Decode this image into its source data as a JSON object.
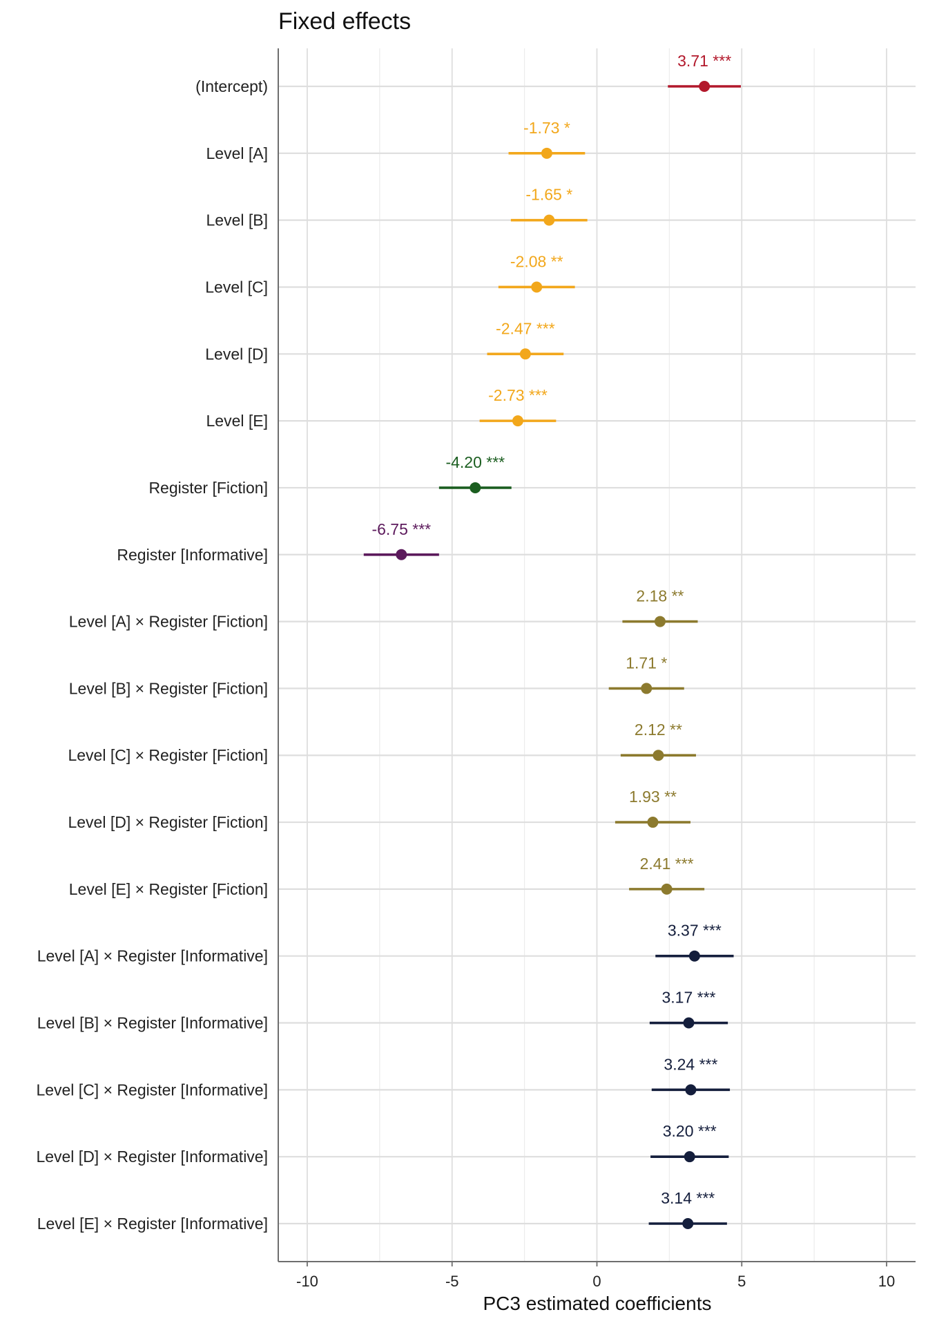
{
  "chart_data": {
    "type": "scatter",
    "title": "Fixed effects",
    "xlabel": "PC3 estimated coefficients",
    "ylabel": "",
    "xlim": [
      -11,
      11
    ],
    "xticks": [
      -10,
      -5,
      0,
      5,
      10
    ],
    "grid": true,
    "legend": "none",
    "terms": [
      {
        "label": "(Intercept)",
        "estimate": 3.71,
        "ci_low": 2.45,
        "ci_high": 4.97,
        "value_label": "3.71 ***",
        "color": "#B2182B"
      },
      {
        "label": "Level [A]",
        "estimate": -1.73,
        "ci_low": -3.05,
        "ci_high": -0.41,
        "value_label": "-1.73 *",
        "color": "#F2A71B"
      },
      {
        "label": "Level [B]",
        "estimate": -1.65,
        "ci_low": -2.97,
        "ci_high": -0.33,
        "value_label": "-1.65 *",
        "color": "#F2A71B"
      },
      {
        "label": "Level [C]",
        "estimate": -2.08,
        "ci_low": -3.4,
        "ci_high": -0.76,
        "value_label": "-2.08 **",
        "color": "#F2A71B"
      },
      {
        "label": "Level [D]",
        "estimate": -2.47,
        "ci_low": -3.79,
        "ci_high": -1.15,
        "value_label": "-2.47 ***",
        "color": "#F2A71B"
      },
      {
        "label": "Level [E]",
        "estimate": -2.73,
        "ci_low": -4.05,
        "ci_high": -1.41,
        "value_label": "-2.73 ***",
        "color": "#F2A71B"
      },
      {
        "label": "Register [Fiction]",
        "estimate": -4.2,
        "ci_low": -5.45,
        "ci_high": -2.95,
        "value_label": "-4.20 ***",
        "color": "#1B5E20"
      },
      {
        "label": "Register [Informative]",
        "estimate": -6.75,
        "ci_low": -8.05,
        "ci_high": -5.45,
        "value_label": "-6.75 ***",
        "color": "#5C1A5C"
      },
      {
        "label": "Level [A] × Register [Fiction]",
        "estimate": 2.18,
        "ci_low": 0.88,
        "ci_high": 3.48,
        "value_label": "2.18 **",
        "color": "#8C7A2E"
      },
      {
        "label": "Level [B] × Register [Fiction]",
        "estimate": 1.71,
        "ci_low": 0.41,
        "ci_high": 3.01,
        "value_label": "1.71 *",
        "color": "#8C7A2E"
      },
      {
        "label": "Level [C] × Register [Fiction]",
        "estimate": 2.12,
        "ci_low": 0.82,
        "ci_high": 3.42,
        "value_label": "2.12 **",
        "color": "#8C7A2E"
      },
      {
        "label": "Level [D] × Register [Fiction]",
        "estimate": 1.93,
        "ci_low": 0.63,
        "ci_high": 3.23,
        "value_label": "1.93 **",
        "color": "#8C7A2E"
      },
      {
        "label": "Level [E] × Register [Fiction]",
        "estimate": 2.41,
        "ci_low": 1.11,
        "ci_high": 3.71,
        "value_label": "2.41 ***",
        "color": "#8C7A2E"
      },
      {
        "label": "Level [A] × Register [Informative]",
        "estimate": 3.37,
        "ci_low": 2.02,
        "ci_high": 4.72,
        "value_label": "3.37 ***",
        "color": "#141E3C"
      },
      {
        "label": "Level [B] × Register [Informative]",
        "estimate": 3.17,
        "ci_low": 1.82,
        "ci_high": 4.52,
        "value_label": "3.17 ***",
        "color": "#141E3C"
      },
      {
        "label": "Level [C] × Register [Informative]",
        "estimate": 3.24,
        "ci_low": 1.89,
        "ci_high": 4.59,
        "value_label": "3.24 ***",
        "color": "#141E3C"
      },
      {
        "label": "Level [D] × Register [Informative]",
        "estimate": 3.2,
        "ci_low": 1.85,
        "ci_high": 4.55,
        "value_label": "3.20 ***",
        "color": "#141E3C"
      },
      {
        "label": "Level [E] × Register [Informative]",
        "estimate": 3.14,
        "ci_low": 1.79,
        "ci_high": 4.49,
        "value_label": "3.14 ***",
        "color": "#141E3C"
      }
    ]
  }
}
